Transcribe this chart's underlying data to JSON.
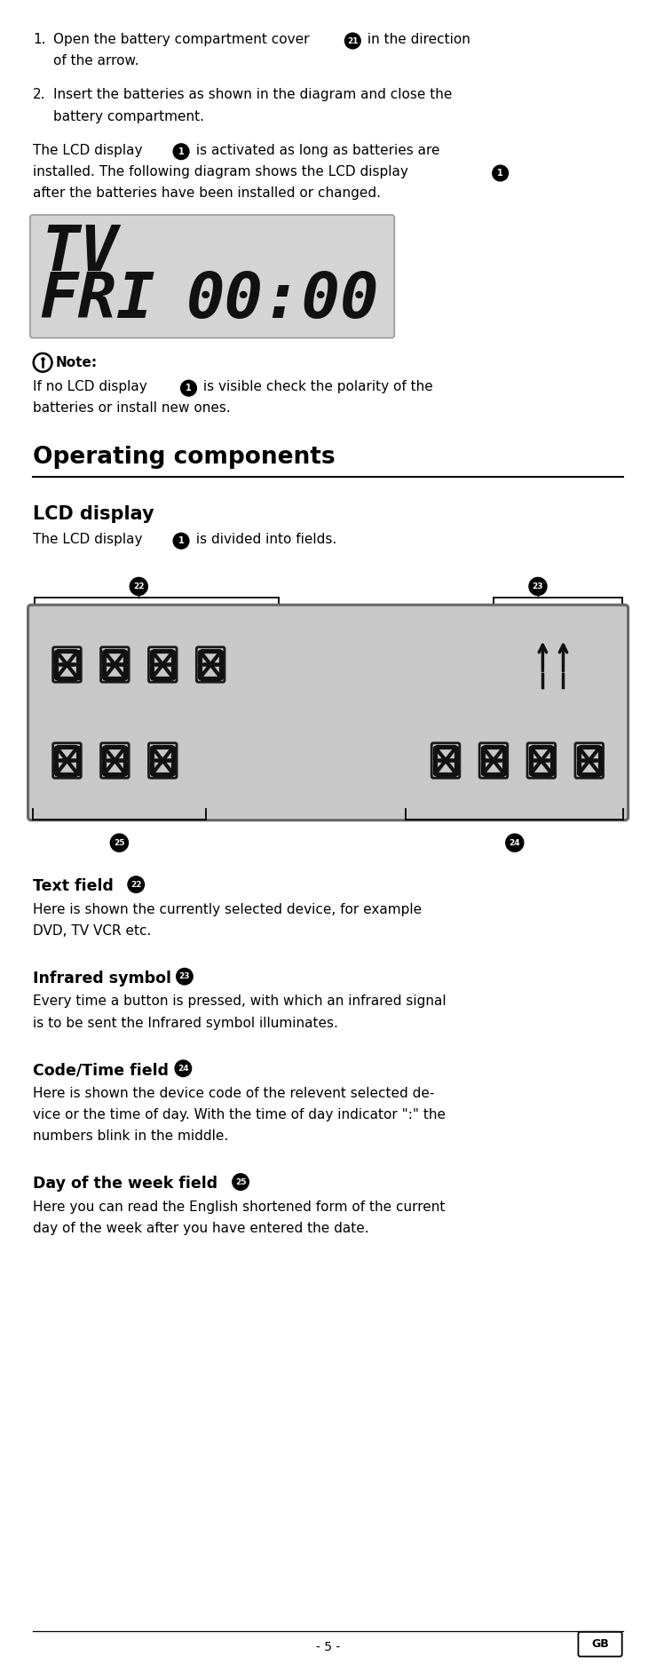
{
  "page_width": 9.6,
  "page_height": 24.34,
  "bg_color": "#ffffff",
  "ml": 0.48,
  "mr": 0.48,
  "text_color": "#000000",
  "body_fs": 11.0,
  "section_title_fs": 19,
  "subsection_fs": 15,
  "footer_text": "- 5 -",
  "footer_gb": "GB"
}
